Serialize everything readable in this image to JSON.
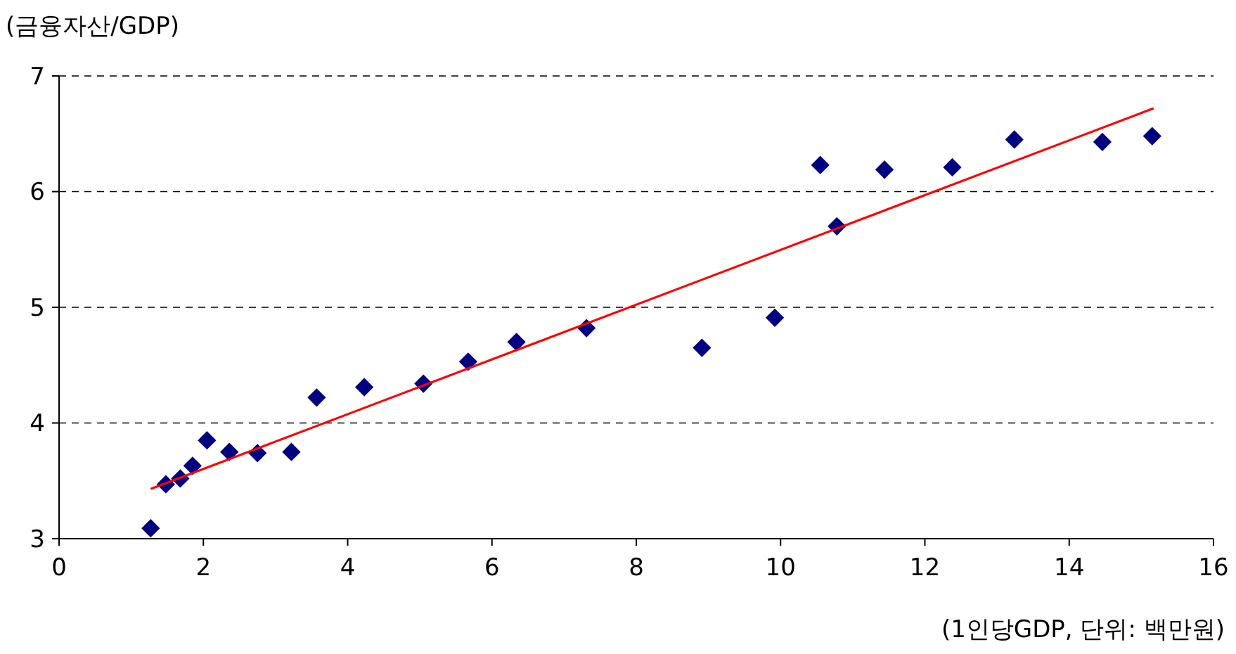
{
  "chart_data": {
    "type": "scatter",
    "ylabel": "(금융자산/GDP)",
    "xlabel": "(1인당GDP, 단위: 백만원)",
    "xlim": [
      0,
      16
    ],
    "xticks": [
      0,
      2,
      4,
      6,
      8,
      10,
      12,
      14,
      16
    ],
    "ylim": [
      3,
      7
    ],
    "yticks": [
      3,
      4,
      5,
      6,
      7
    ],
    "grid": "y",
    "series": [
      {
        "marker": "diamond",
        "color": "#000080",
        "x": [
          1.27,
          1.48,
          1.68,
          1.85,
          2.05,
          2.36,
          2.75,
          3.22,
          3.57,
          4.23,
          5.05,
          5.67,
          6.34,
          7.31,
          8.91,
          9.92,
          10.55,
          10.78,
          11.44,
          12.38,
          13.24,
          14.46,
          15.15
        ],
        "values": [
          3.09,
          3.47,
          3.52,
          3.63,
          3.85,
          3.75,
          3.74,
          3.75,
          4.22,
          4.31,
          4.34,
          4.53,
          4.7,
          4.82,
          4.65,
          4.91,
          6.23,
          5.7,
          6.19,
          6.21,
          6.45,
          6.43,
          6.48
        ]
      },
      {
        "type": "line",
        "marker": "none",
        "color": "#ff0000",
        "x": [
          1.27,
          15.17
        ],
        "values": [
          3.43,
          6.72
        ]
      }
    ]
  }
}
